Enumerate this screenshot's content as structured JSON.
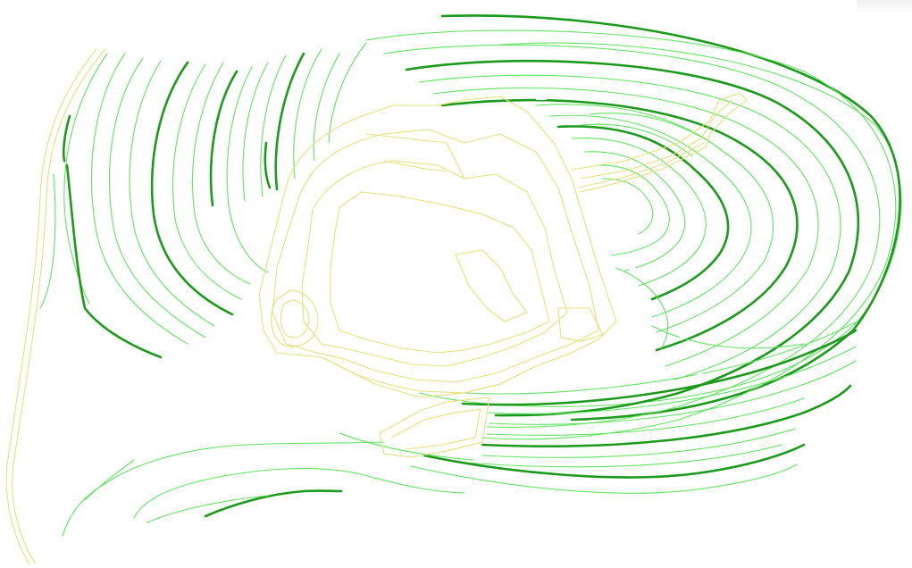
{
  "map": {
    "colors": {
      "background": "#ffffff",
      "minor_contour": "#5fe35f",
      "index_contour": "#1b9a1b",
      "pit_boundary": "#e6e07a",
      "corner_tab": "#f0f0f0"
    }
  }
}
